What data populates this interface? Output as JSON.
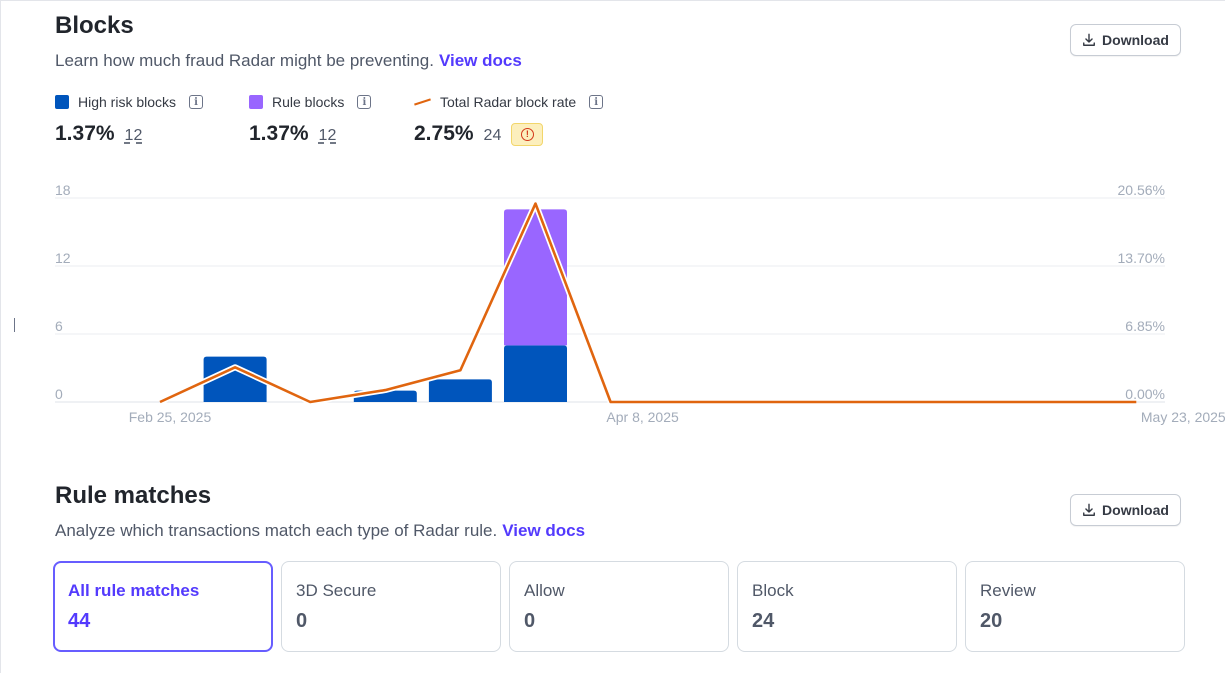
{
  "blocks": {
    "title": "Blocks",
    "description": "Learn how much fraud Radar might be preventing.",
    "docs_link": "View docs",
    "download_label": "Download",
    "metrics": [
      {
        "label": "High risk blocks",
        "value": "1.37%",
        "count": "12",
        "color": "#0055bc",
        "icon": "square-swatch"
      },
      {
        "label": "Rule blocks",
        "value": "1.37%",
        "count": "12",
        "color": "#9966ff",
        "icon": "square-swatch"
      },
      {
        "label": "Total Radar block rate",
        "value": "2.75%",
        "count": "24",
        "color": "#e0650f",
        "icon": "line-swatch",
        "badge": "warning-icon"
      }
    ]
  },
  "chart_data": {
    "type": "bar",
    "stacked": true,
    "x": [
      "Feb 25, 2025",
      "",
      "",
      "",
      "",
      "",
      "Apr 8, 2025",
      "",
      "",
      "",
      "",
      "",
      "",
      "May 23, 2025"
    ],
    "x_tick_labels": [
      "Feb 25, 2025",
      "Apr 8, 2025",
      "May 23, 2025"
    ],
    "left_axis": {
      "ticks": [
        "18",
        "12",
        "6",
        "0"
      ],
      "ylim": [
        0,
        18
      ]
    },
    "right_axis": {
      "ticks": [
        "20.56%",
        "13.70%",
        "6.85%",
        "0.00%"
      ],
      "ylim": [
        0,
        20.56
      ]
    },
    "series": [
      {
        "name": "High risk blocks",
        "type": "bar",
        "color": "#0055bc",
        "values": [
          0,
          4,
          0,
          1,
          2,
          5,
          0,
          0,
          0,
          0,
          0,
          0,
          0,
          0
        ]
      },
      {
        "name": "Rule blocks",
        "type": "bar",
        "color": "#9966ff",
        "values": [
          0,
          0,
          0,
          0,
          0,
          12,
          0,
          0,
          0,
          0,
          0,
          0,
          0,
          0
        ]
      },
      {
        "name": "Total Radar block rate",
        "type": "line",
        "axis": "right",
        "color": "#e0650f",
        "values": [
          0,
          3.5,
          0,
          1.2,
          3.2,
          20.0,
          0,
          0,
          0,
          0,
          0,
          0,
          0,
          0
        ]
      }
    ],
    "grid": true,
    "legend": "top-left"
  },
  "rule_matches": {
    "title": "Rule matches",
    "description": "Analyze which transactions match each type of Radar rule.",
    "docs_link": "View docs",
    "download_label": "Download",
    "cards": [
      {
        "label": "All rule matches",
        "value": "44"
      },
      {
        "label": "3D Secure",
        "value": "0"
      },
      {
        "label": "Allow",
        "value": "0"
      },
      {
        "label": "Block",
        "value": "24"
      },
      {
        "label": "Review",
        "value": "20"
      }
    ]
  }
}
